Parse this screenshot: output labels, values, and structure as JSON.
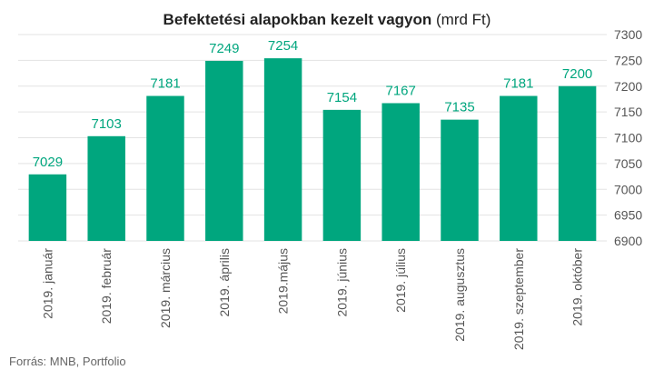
{
  "title_main": "Befektetési alapokban kezelt vagyon",
  "title_unit": "(mrd Ft)",
  "source": "Forrás: MNB, Portfolio",
  "colors": {
    "bar": "#00A67E",
    "label": "#00A67E",
    "grid": "#e3e3e3",
    "axis_text": "#555555"
  },
  "chart_data": {
    "type": "bar",
    "categories": [
      "2019. január",
      "2019. február",
      "2019. március",
      "2019. április",
      "2019.május",
      "2019. június",
      "2019. július",
      "2019. augusztus",
      "2019. szeptember",
      "2019. október"
    ],
    "values": [
      7029,
      7103,
      7181,
      7249,
      7254,
      7154,
      7167,
      7135,
      7181,
      7200
    ],
    "ylim": [
      6900,
      7300
    ],
    "yticks": [
      6900,
      6950,
      7000,
      7050,
      7100,
      7150,
      7200,
      7250,
      7300
    ],
    "y_axis_side": "right",
    "grid": true,
    "data_labels": true
  }
}
